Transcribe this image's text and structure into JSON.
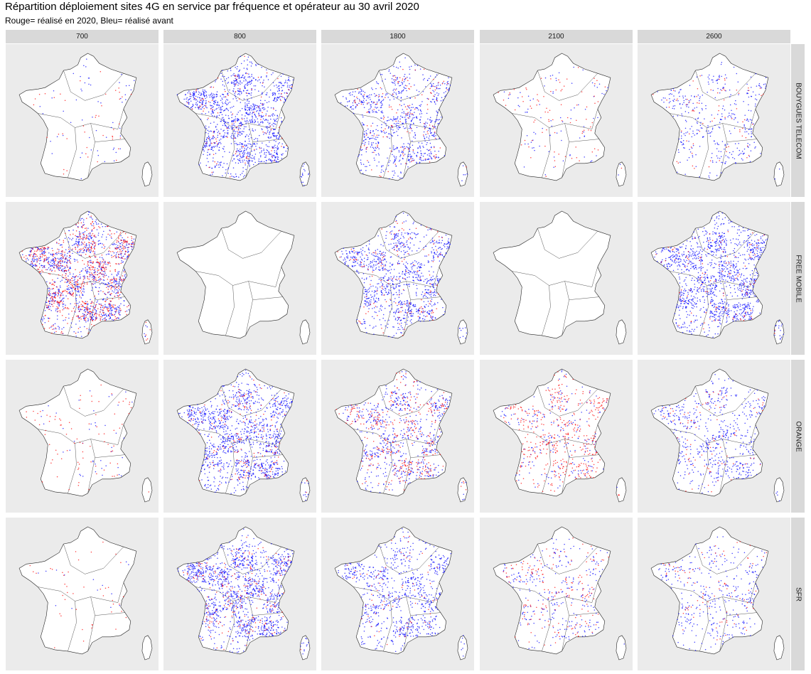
{
  "title": "Répartition déploiement sites 4G en service par fréquence et opérateur au 30 avril 2020",
  "subtitle": "Rouge= réalisé en 2020, Bleu= réalisé avant",
  "chart_data": {
    "type": "scatter",
    "kind": "faceted dot map of France (metropolitan + Corsica)",
    "facet_columns": [
      "700",
      "800",
      "1800",
      "2100",
      "2600"
    ],
    "facet_rows": [
      "BOUYGUES TELECOM",
      "FREE MOBILE",
      "ORANGE",
      "SFR"
    ],
    "series": [
      {
        "label": "Rouge",
        "meaning": "réalisé en 2020",
        "color": "#ff0000"
      },
      {
        "label": "Bleu",
        "meaning": "réalisé avant",
        "color": "#0000ff"
      }
    ],
    "panel_background": "#ebebeb",
    "strip_background": "#d9d9d9",
    "land_fill": "#ffffff",
    "density_levels_description": "relative qualitative site density per panel, 0 = no sites, 1 = very dense",
    "panels": [
      [
        {
          "blue": 0.04,
          "red": 0.03
        },
        {
          "blue": 0.9,
          "red": 0.08
        },
        {
          "blue": 0.55,
          "red": 0.1
        },
        {
          "blue": 0.06,
          "red": 0.06
        },
        {
          "blue": 0.25,
          "red": 0.05
        }
      ],
      [
        {
          "blue": 0.75,
          "red": 0.55
        },
        {
          "blue": 0.0,
          "red": 0.0
        },
        {
          "blue": 0.7,
          "red": 0.1
        },
        {
          "blue": 0.0,
          "red": 0.0
        },
        {
          "blue": 0.9,
          "red": 0.08
        }
      ],
      [
        {
          "blue": 0.03,
          "red": 0.06
        },
        {
          "blue": 0.85,
          "red": 0.12
        },
        {
          "blue": 0.45,
          "red": 0.25
        },
        {
          "blue": 0.15,
          "red": 0.3
        },
        {
          "blue": 0.4,
          "red": 0.06
        }
      ],
      [
        {
          "blue": 0.01,
          "red": 0.03
        },
        {
          "blue": 0.9,
          "red": 0.15
        },
        {
          "blue": 0.55,
          "red": 0.05
        },
        {
          "blue": 0.2,
          "red": 0.12
        },
        {
          "blue": 0.25,
          "red": 0.06
        }
      ]
    ]
  }
}
